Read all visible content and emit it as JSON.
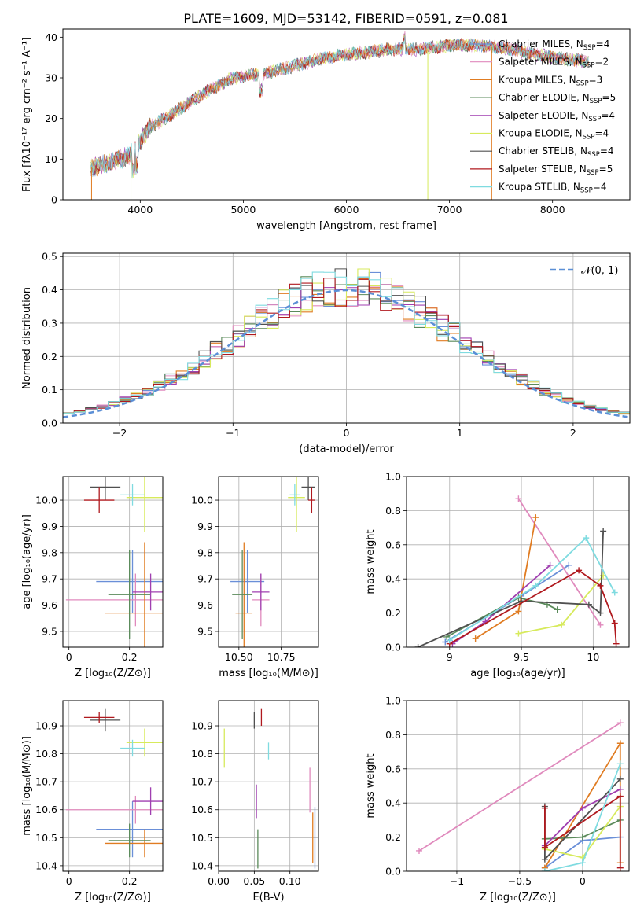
{
  "figure": {
    "title": "PLATE=1609, MJD=53142, FIBERID=0591, z=0.081"
  },
  "models": [
    {
      "name": "Chabrier MILES",
      "nssp": "4",
      "color": "#6a8fd8"
    },
    {
      "name": "Salpeter MILES",
      "nssp": "2",
      "color": "#e08abd"
    },
    {
      "name": "Kroupa MILES",
      "nssp": "3",
      "color": "#e07c22"
    },
    {
      "name": "Chabrier ELODIE",
      "nssp": "5",
      "color": "#5a8a5a"
    },
    {
      "name": "Salpeter ELODIE",
      "nssp": "4",
      "color": "#a03fb0"
    },
    {
      "name": "Kroupa ELODIE",
      "nssp": "4",
      "color": "#d7ea5c"
    },
    {
      "name": "Chabrier STELIB",
      "nssp": "4",
      "color": "#505050"
    },
    {
      "name": "Salpeter STELIB",
      "nssp": "5",
      "color": "#b0191e"
    },
    {
      "name": "Kroupa STELIB",
      "nssp": "4",
      "color": "#7fdbe0"
    }
  ],
  "chart_data": [
    {
      "id": "spectrum",
      "type": "line",
      "xlabel": "wavelength [Angstrom, rest frame]",
      "ylabel": "Flux [fλ10⁻¹⁷ erg cm⁻² s⁻¹ A⁻¹]",
      "xlim": [
        3250,
        8750
      ],
      "ylim": [
        0,
        42
      ],
      "xticks": [
        4000,
        5000,
        6000,
        7000,
        8000
      ],
      "yticks": [
        0,
        10,
        20,
        30,
        40
      ],
      "grid": false,
      "legend": "top-right",
      "wavelength_start": 3520,
      "wavelength_end": 8350,
      "continuum_x": [
        3520,
        3700,
        3900,
        4100,
        4300,
        4600,
        4900,
        5200,
        5500,
        5800,
        6100,
        6400,
        6700,
        7000,
        7300,
        7600,
        8000,
        8350
      ],
      "continuum_y": [
        8,
        9,
        11,
        18,
        21,
        26,
        30,
        31,
        33,
        35,
        36,
        37,
        37,
        38,
        38,
        37,
        35,
        34
      ]
    },
    {
      "id": "residuals",
      "type": "histogram",
      "xlabel": "(data-model)/error",
      "ylabel": "Normed distribution",
      "xlim": [
        -2.5,
        2.5
      ],
      "ylim": [
        0,
        0.51
      ],
      "xticks": [
        -2,
        -1,
        0,
        1,
        2
      ],
      "yticks": [
        0.0,
        0.1,
        0.2,
        0.3,
        0.4,
        0.5
      ],
      "grid": true,
      "legend": "top-right",
      "reference_curve": {
        "label": "𝒩(0, 1)",
        "mean": 0,
        "sigma": 1
      },
      "bin_width": 0.1,
      "bin_centers": [
        -2.45,
        -2.35,
        -2.25,
        -2.15,
        -2.05,
        -1.95,
        -1.85,
        -1.75,
        -1.65,
        -1.55,
        -1.45,
        -1.35,
        -1.25,
        -1.15,
        -1.05,
        -0.95,
        -0.85,
        -0.75,
        -0.65,
        -0.55,
        -0.45,
        -0.35,
        -0.25,
        -0.15,
        -0.05,
        0.05,
        0.15,
        0.25,
        0.35,
        0.45,
        0.55,
        0.65,
        0.75,
        0.85,
        0.95,
        1.05,
        1.15,
        1.25,
        1.35,
        1.45,
        1.55,
        1.65,
        1.75,
        1.85,
        1.95,
        2.05,
        2.15,
        2.25,
        2.35,
        2.45
      ],
      "max_bin_value": 0.49
    },
    {
      "id": "age-vs-Z",
      "type": "scatter",
      "xlabel": "Z [log₁₀(Z/Z⊙)]",
      "ylabel": "age  [log₁₀(age/yr)]",
      "xlim": [
        -0.02,
        0.31
      ],
      "ylim": [
        9.44,
        10.09
      ],
      "xticks": [
        0.0,
        0.2
      ],
      "yticks": [
        9.5,
        9.6,
        9.7,
        9.8,
        9.9,
        10.0
      ],
      "grid": true,
      "points": [
        {
          "model": 0,
          "x": 0.21,
          "y": 9.69,
          "xerr": 0.12,
          "yerr": 0.12
        },
        {
          "model": 1,
          "x": 0.22,
          "y": 9.62,
          "xerr": 0.23,
          "yerr": 0.1
        },
        {
          "model": 2,
          "x": 0.25,
          "y": 9.57,
          "xerr": 0.13,
          "yerr": 0.27
        },
        {
          "model": 3,
          "x": 0.2,
          "y": 9.64,
          "xerr": 0.07,
          "yerr": 0.17
        },
        {
          "model": 4,
          "x": 0.27,
          "y": 9.65,
          "xerr": 0.06,
          "yerr": 0.07
        },
        {
          "model": 5,
          "x": 0.25,
          "y": 10.01,
          "xerr": 0.06,
          "yerr": 0.13
        },
        {
          "model": 6,
          "x": 0.12,
          "y": 10.05,
          "xerr": 0.05,
          "yerr": 0.05
        },
        {
          "model": 7,
          "x": 0.1,
          "y": 10.0,
          "xerr": 0.05,
          "yerr": 0.05
        },
        {
          "model": 8,
          "x": 0.21,
          "y": 10.02,
          "xerr": 0.04,
          "yerr": 0.04
        }
      ]
    },
    {
      "id": "age-vs-mass",
      "type": "scatter",
      "xlabel": "mass [log₁₀(M/M⊙)]",
      "ylabel": "",
      "xlim": [
        10.38,
        10.97
      ],
      "ylim": [
        9.44,
        10.09
      ],
      "xticks": [
        10.5,
        10.75
      ],
      "xticklabels": [
        "10.50",
        "10.75"
      ],
      "yticks": [
        9.5,
        9.6,
        9.7,
        9.8,
        9.9,
        10.0
      ],
      "grid": true,
      "points": [
        {
          "model": 0,
          "x": 10.55,
          "y": 9.69,
          "xerr": 0.1,
          "yerr": 0.12
        },
        {
          "model": 1,
          "x": 10.63,
          "y": 9.62,
          "xerr": 0.05,
          "yerr": 0.1
        },
        {
          "model": 2,
          "x": 10.53,
          "y": 9.57,
          "xerr": 0.05,
          "yerr": 0.27
        },
        {
          "model": 3,
          "x": 10.52,
          "y": 9.64,
          "xerr": 0.06,
          "yerr": 0.17
        },
        {
          "model": 4,
          "x": 10.63,
          "y": 9.65,
          "xerr": 0.05,
          "yerr": 0.07
        },
        {
          "model": 5,
          "x": 10.84,
          "y": 10.01,
          "xerr": 0.05,
          "yerr": 0.13
        },
        {
          "model": 6,
          "x": 10.91,
          "y": 10.05,
          "xerr": 0.04,
          "yerr": 0.05
        },
        {
          "model": 7,
          "x": 10.93,
          "y": 10.0,
          "xerr": 0.02,
          "yerr": 0.05
        },
        {
          "model": 8,
          "x": 10.83,
          "y": 10.02,
          "xerr": 0.03,
          "yerr": 0.04
        }
      ]
    },
    {
      "id": "weight-vs-age",
      "type": "line",
      "xlabel": "age  [log₁₀(age/yr)]",
      "ylabel": "mass weight",
      "xlim": [
        8.7,
        10.25
      ],
      "ylim": [
        0,
        1
      ],
      "xticks": [
        9.0,
        9.5,
        10.0
      ],
      "yticks": [
        0.0,
        0.2,
        0.4,
        0.6,
        0.8,
        1.0
      ],
      "grid": true,
      "series": [
        {
          "model": 0,
          "x": [
            8.97,
            9.5,
            9.83
          ],
          "y": [
            0.03,
            0.3,
            0.48
          ]
        },
        {
          "model": 1,
          "x": [
            9.48,
            10.05
          ],
          "y": [
            0.87,
            0.13
          ]
        },
        {
          "model": 2,
          "x": [
            9.18,
            9.48,
            9.6
          ],
          "y": [
            0.05,
            0.21,
            0.76
          ]
        },
        {
          "model": 3,
          "x": [
            8.98,
            9.48,
            9.68,
            9.75
          ],
          "y": [
            0.06,
            0.29,
            0.25,
            0.22
          ]
        },
        {
          "model": 4,
          "x": [
            9.02,
            9.25,
            9.7
          ],
          "y": [
            0.02,
            0.15,
            0.48
          ]
        },
        {
          "model": 5,
          "x": [
            9.48,
            9.78,
            10.07
          ],
          "y": [
            0.08,
            0.13,
            0.42
          ]
        },
        {
          "model": 6,
          "x": [
            8.78,
            9.5,
            9.97,
            10.05,
            10.07
          ],
          "y": [
            0.0,
            0.27,
            0.25,
            0.2,
            0.68
          ]
        },
        {
          "model": 7,
          "x": [
            9.0,
            9.9,
            10.05,
            10.15,
            10.16
          ],
          "y": [
            0.02,
            0.45,
            0.36,
            0.14,
            0.02
          ]
        },
        {
          "model": 8,
          "x": [
            9.0,
            9.6,
            9.95,
            10.15
          ],
          "y": [
            0.04,
            0.36,
            0.64,
            0.32
          ]
        }
      ]
    },
    {
      "id": "mass-vs-Z",
      "type": "scatter",
      "xlabel": "Z [log₁₀(Z/Z⊙)]",
      "ylabel": "mass [log₁₀(M/M⊙)]",
      "xlim": [
        -0.02,
        0.31
      ],
      "ylim": [
        10.38,
        10.99
      ],
      "xticks": [
        0.0,
        0.2
      ],
      "yticks": [
        10.4,
        10.5,
        10.6,
        10.7,
        10.8,
        10.9
      ],
      "grid": true,
      "points": [
        {
          "model": 0,
          "x": 0.21,
          "y": 10.53,
          "xerr": 0.12,
          "yerr": 0.1
        },
        {
          "model": 1,
          "x": 0.22,
          "y": 10.6,
          "xerr": 0.23,
          "yerr": 0.05
        },
        {
          "model": 2,
          "x": 0.25,
          "y": 10.48,
          "xerr": 0.13,
          "yerr": 0.05
        },
        {
          "model": 3,
          "x": 0.2,
          "y": 10.49,
          "xerr": 0.07,
          "yerr": 0.06
        },
        {
          "model": 4,
          "x": 0.27,
          "y": 10.63,
          "xerr": 0.06,
          "yerr": 0.05
        },
        {
          "model": 5,
          "x": 0.25,
          "y": 10.84,
          "xerr": 0.06,
          "yerr": 0.05
        },
        {
          "model": 6,
          "x": 0.12,
          "y": 10.92,
          "xerr": 0.05,
          "yerr": 0.04
        },
        {
          "model": 7,
          "x": 0.1,
          "y": 10.93,
          "xerr": 0.05,
          "yerr": 0.02
        },
        {
          "model": 8,
          "x": 0.21,
          "y": 10.82,
          "xerr": 0.04,
          "yerr": 0.03
        }
      ]
    },
    {
      "id": "mass-vs-EBV",
      "type": "scatter",
      "xlabel": "E(B-V)",
      "ylabel": "",
      "xlim": [
        0.0,
        0.14
      ],
      "ylim": [
        10.38,
        10.99
      ],
      "xticks": [
        0.0,
        0.05,
        0.1
      ],
      "xticklabels": [
        "0.00",
        "0.05",
        "0.10"
      ],
      "yticks": [
        10.4,
        10.5,
        10.6,
        10.7,
        10.8,
        10.9
      ],
      "grid": true,
      "points": [
        {
          "model": 0,
          "x": 0.135,
          "y": 10.5,
          "xerr": 0,
          "yerr": 0.11
        },
        {
          "model": 1,
          "x": 0.128,
          "y": 10.67,
          "xerr": 0,
          "yerr": 0.08
        },
        {
          "model": 2,
          "x": 0.132,
          "y": 10.5,
          "xerr": 0,
          "yerr": 0.09
        },
        {
          "model": 3,
          "x": 0.055,
          "y": 10.46,
          "xerr": 0,
          "yerr": 0.07
        },
        {
          "model": 4,
          "x": 0.053,
          "y": 10.63,
          "xerr": 0,
          "yerr": 0.06
        },
        {
          "model": 5,
          "x": 0.008,
          "y": 10.82,
          "xerr": 0,
          "yerr": 0.07
        },
        {
          "model": 6,
          "x": 0.05,
          "y": 10.92,
          "xerr": 0,
          "yerr": 0.03
        },
        {
          "model": 7,
          "x": 0.06,
          "y": 10.93,
          "xerr": 0,
          "yerr": 0.03
        },
        {
          "model": 8,
          "x": 0.07,
          "y": 10.81,
          "xerr": 0,
          "yerr": 0.03
        }
      ]
    },
    {
      "id": "weight-vs-Z",
      "type": "line",
      "xlabel": "Z [log₁₀(Z/Z⊙)]",
      "ylabel": "mass weight",
      "xlim": [
        -1.4,
        0.37
      ],
      "ylim": [
        0,
        1
      ],
      "xticks": [
        -1.0,
        -0.5,
        0.0
      ],
      "yticks": [
        0.0,
        0.2,
        0.4,
        0.6,
        0.8,
        1.0
      ],
      "grid": true,
      "series": [
        {
          "model": 0,
          "x": [
            -0.3,
            0.0,
            0.3
          ],
          "y": [
            0.02,
            0.18,
            0.2
          ]
        },
        {
          "model": 1,
          "x": [
            -1.3,
            0.3
          ],
          "y": [
            0.12,
            0.87
          ]
        },
        {
          "model": 2,
          "x": [
            -0.3,
            0.3,
            0.3
          ],
          "y": [
            0.02,
            0.75,
            0.05
          ]
        },
        {
          "model": 3,
          "x": [
            -0.3,
            0.0,
            0.3
          ],
          "y": [
            0.19,
            0.2,
            0.3
          ]
        },
        {
          "model": 4,
          "x": [
            -0.3,
            0.0,
            0.3
          ],
          "y": [
            0.15,
            0.37,
            0.48
          ]
        },
        {
          "model": 5,
          "x": [
            -0.3,
            0.0,
            0.3
          ],
          "y": [
            0.13,
            0.08,
            0.38
          ]
        },
        {
          "model": 6,
          "x": [
            -0.3,
            -0.3,
            0.3
          ],
          "y": [
            0.38,
            0.07,
            0.54
          ]
        },
        {
          "model": 7,
          "x": [
            -0.3,
            -0.3,
            0.3,
            0.3
          ],
          "y": [
            0.37,
            0.14,
            0.44,
            0.02
          ]
        },
        {
          "model": 8,
          "x": [
            -0.3,
            0.0,
            0.3
          ],
          "y": [
            0.0,
            0.05,
            0.63
          ]
        }
      ]
    }
  ]
}
